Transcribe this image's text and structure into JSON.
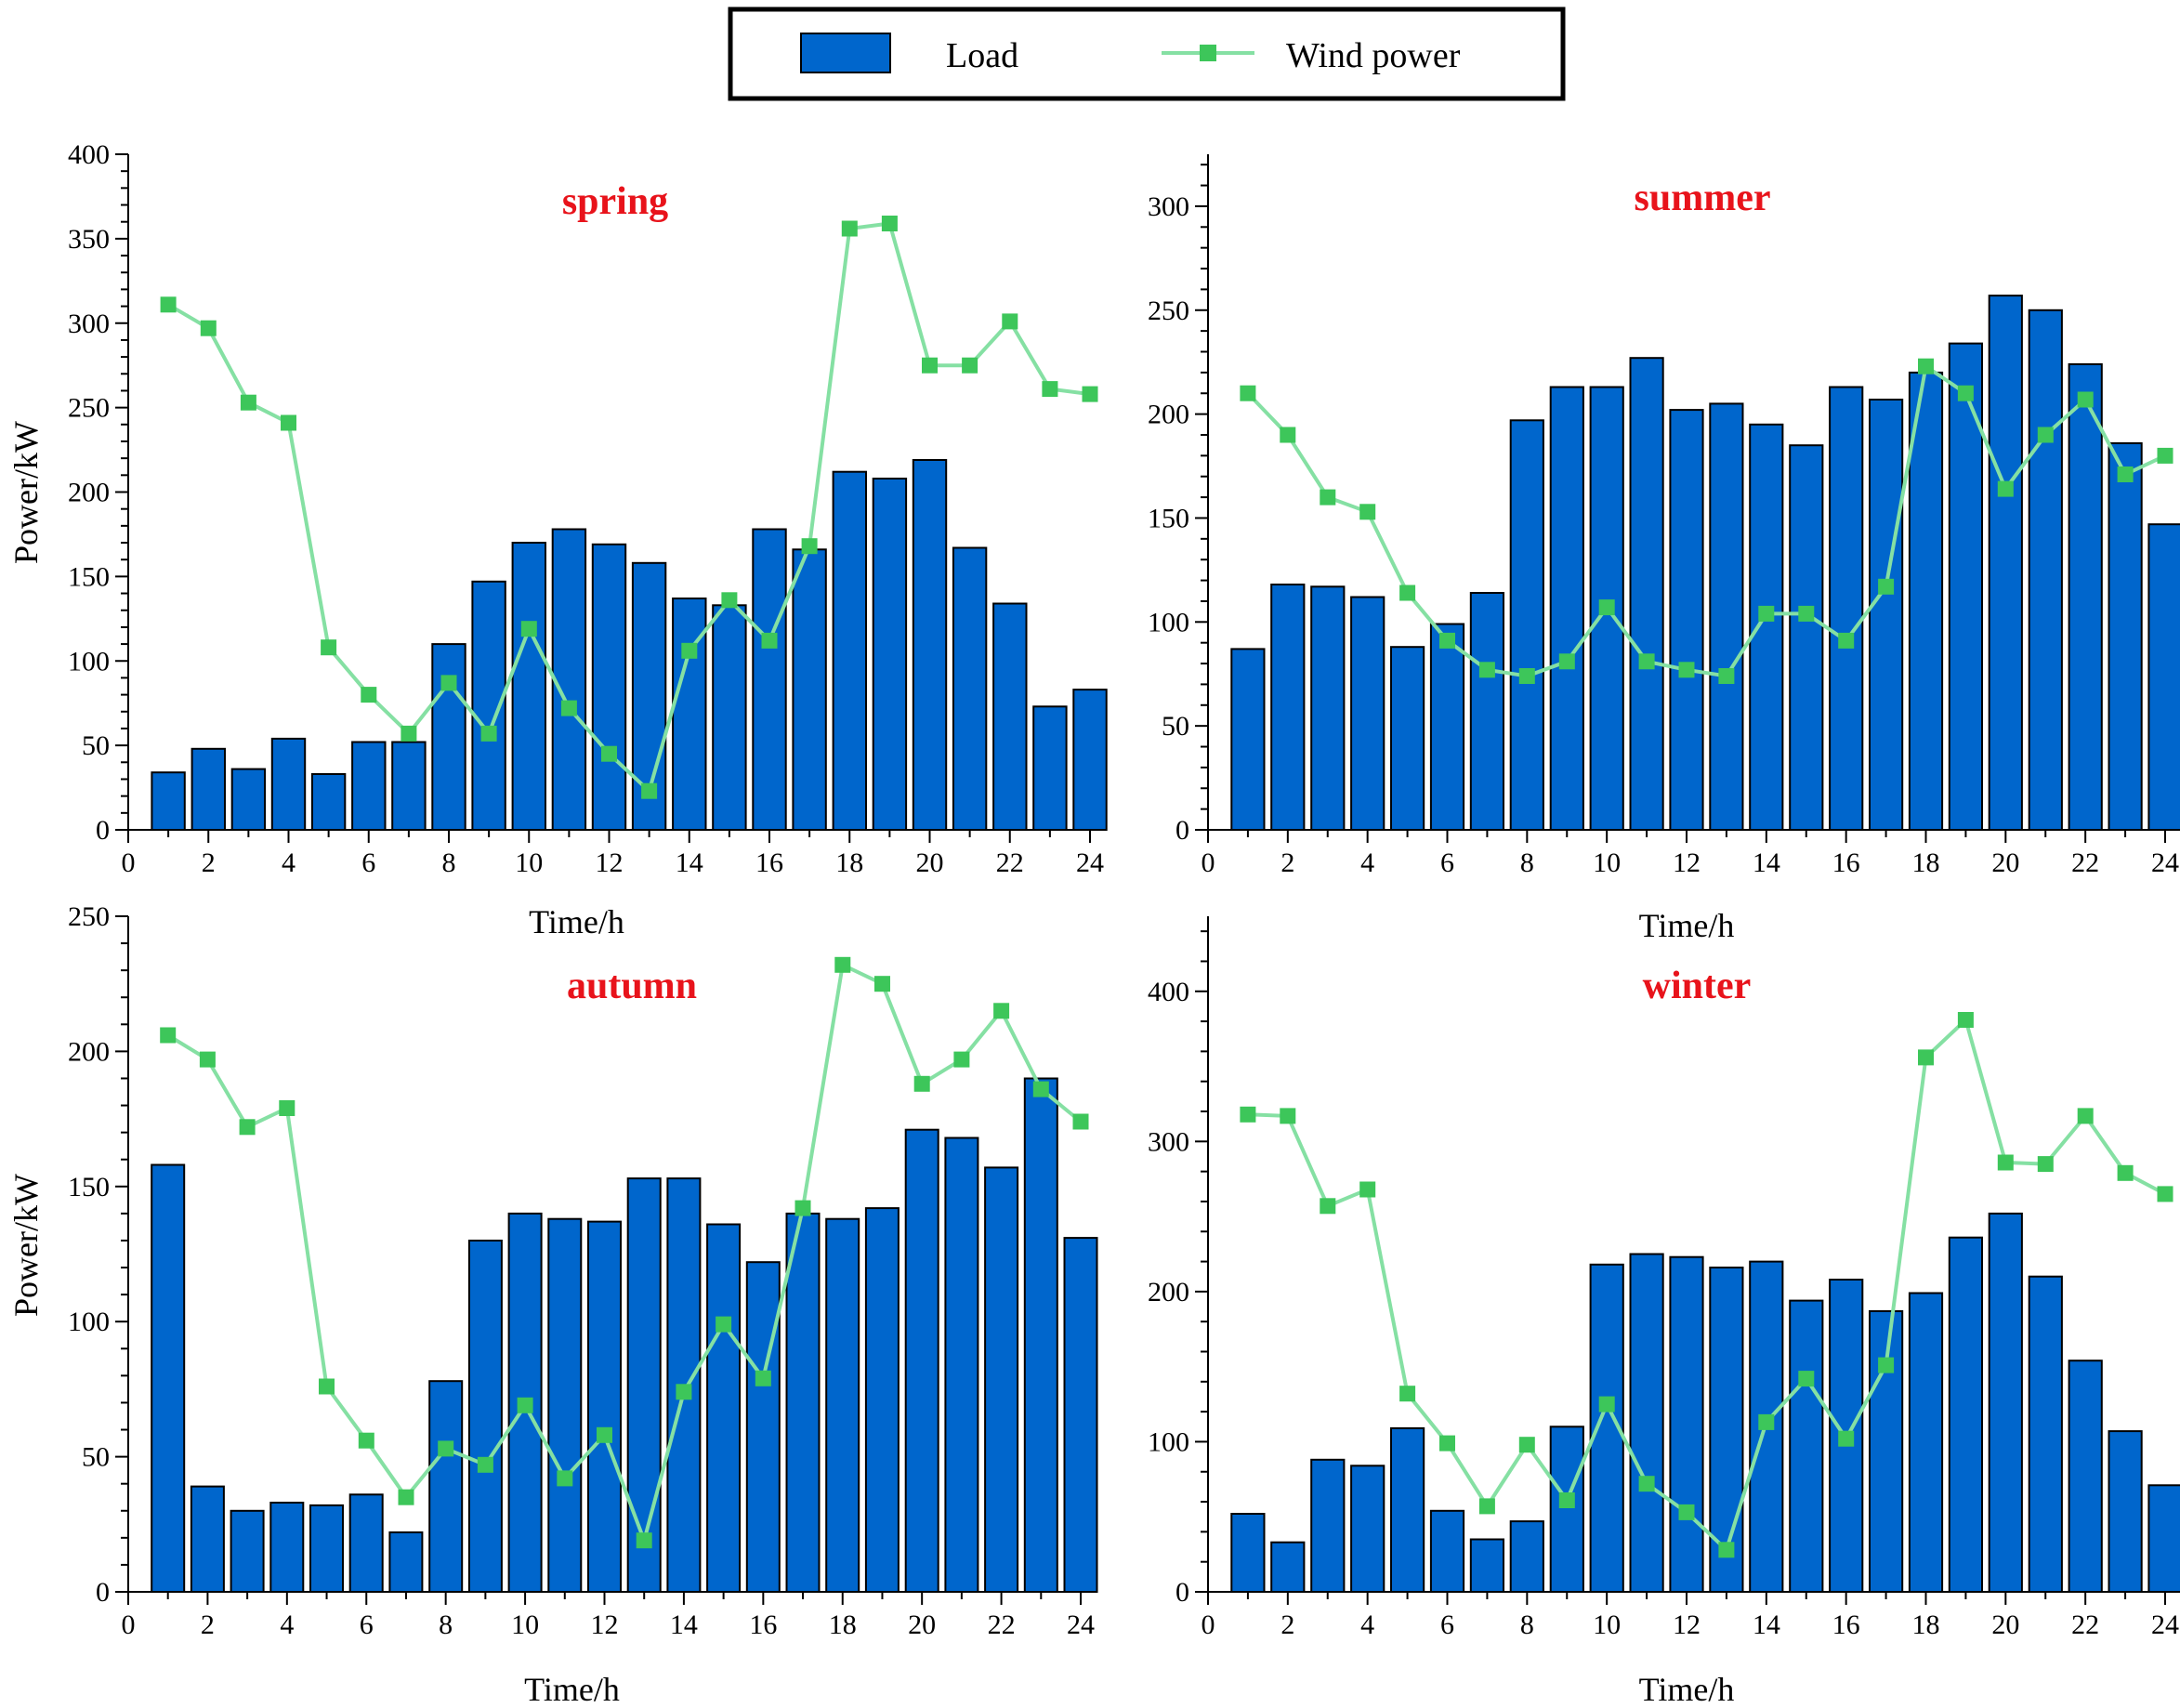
{
  "legend": {
    "load_label": "Load",
    "wind_label": "Wind power"
  },
  "colors": {
    "load_fill": "#0066cc",
    "wind_line": "#85e0a3",
    "wind_marker": "#3dc65a",
    "title": "#e8131b"
  },
  "chart_data": [
    {
      "type": "bar",
      "title": "spring",
      "xlabel": "Time/h",
      "ylabel": "Power/kW",
      "xlim": [
        0,
        24
      ],
      "ylim": [
        0,
        400
      ],
      "xticks": [
        0,
        2,
        4,
        6,
        8,
        10,
        12,
        14,
        16,
        18,
        20,
        22,
        24
      ],
      "yticks": [
        0,
        50,
        100,
        150,
        200,
        250,
        300,
        350,
        400
      ],
      "x": [
        1,
        2,
        3,
        4,
        5,
        6,
        7,
        8,
        9,
        10,
        11,
        12,
        13,
        14,
        15,
        16,
        17,
        18,
        19,
        20,
        21,
        22,
        23,
        24
      ],
      "series": [
        {
          "name": "Load",
          "type": "bar",
          "values": [
            34,
            48,
            36,
            54,
            33,
            52,
            52,
            110,
            147,
            170,
            178,
            169,
            158,
            137,
            133,
            178,
            166,
            212,
            208,
            219,
            167,
            134,
            73,
            83
          ]
        },
        {
          "name": "Wind power",
          "type": "line",
          "values": [
            311,
            297,
            253,
            241,
            108,
            80,
            57,
            87,
            57,
            119,
            72,
            45,
            23,
            106,
            136,
            112,
            168,
            356,
            359,
            275,
            275,
            301,
            261,
            258
          ]
        }
      ]
    },
    {
      "type": "bar",
      "title": "summer",
      "xlabel": "Time/h",
      "ylabel": "",
      "xlim": [
        0,
        24
      ],
      "ylim": [
        0,
        325
      ],
      "xticks": [
        0,
        2,
        4,
        6,
        8,
        10,
        12,
        14,
        16,
        18,
        20,
        22,
        24
      ],
      "yticks": [
        0,
        50,
        100,
        150,
        200,
        250,
        300
      ],
      "x": [
        1,
        2,
        3,
        4,
        5,
        6,
        7,
        8,
        9,
        10,
        11,
        12,
        13,
        14,
        15,
        16,
        17,
        18,
        19,
        20,
        21,
        22,
        23,
        24
      ],
      "series": [
        {
          "name": "Load",
          "type": "bar",
          "values": [
            87,
            118,
            117,
            112,
            88,
            99,
            114,
            197,
            213,
            213,
            227,
            202,
            205,
            195,
            185,
            213,
            207,
            220,
            234,
            257,
            250,
            224,
            186,
            147
          ]
        },
        {
          "name": "Wind power",
          "type": "line",
          "values": [
            210,
            190,
            160,
            153,
            114,
            91,
            77,
            74,
            81,
            107,
            81,
            77,
            74,
            104,
            104,
            91,
            117,
            223,
            210,
            164,
            190,
            207,
            171,
            180
          ]
        }
      ]
    },
    {
      "type": "bar",
      "title": "autumn",
      "xlabel": "Time/h",
      "ylabel": "Power/kW",
      "xlim": [
        0,
        24
      ],
      "ylim": [
        0,
        250
      ],
      "xticks": [
        0,
        2,
        4,
        6,
        8,
        10,
        12,
        14,
        16,
        18,
        20,
        22,
        24
      ],
      "yticks": [
        0,
        50,
        100,
        150,
        200,
        250
      ],
      "x": [
        1,
        2,
        3,
        4,
        5,
        6,
        7,
        8,
        9,
        10,
        11,
        12,
        13,
        14,
        15,
        16,
        17,
        18,
        19,
        20,
        21,
        22,
        23,
        24
      ],
      "series": [
        {
          "name": "Load",
          "type": "bar",
          "values": [
            158,
            39,
            30,
            33,
            32,
            36,
            22,
            78,
            130,
            140,
            138,
            137,
            153,
            153,
            136,
            122,
            140,
            138,
            142,
            171,
            168,
            157,
            190,
            131
          ]
        },
        {
          "name": "Wind power",
          "type": "line",
          "values": [
            206,
            197,
            172,
            179,
            76,
            56,
            35,
            53,
            47,
            69,
            42,
            58,
            19,
            74,
            99,
            79,
            142,
            232,
            225,
            188,
            197,
            215,
            186,
            174
          ]
        }
      ]
    },
    {
      "type": "bar",
      "title": "winter",
      "xlabel": "Time/h",
      "ylabel": "",
      "xlim": [
        0,
        24
      ],
      "ylim": [
        0,
        450
      ],
      "xticks": [
        0,
        2,
        4,
        6,
        8,
        10,
        12,
        14,
        16,
        18,
        20,
        22,
        24
      ],
      "yticks": [
        0,
        100,
        200,
        300,
        400
      ],
      "x": [
        1,
        2,
        3,
        4,
        5,
        6,
        7,
        8,
        9,
        10,
        11,
        12,
        13,
        14,
        15,
        16,
        17,
        18,
        19,
        20,
        21,
        22,
        23,
        24
      ],
      "series": [
        {
          "name": "Load",
          "type": "bar",
          "values": [
            52,
            33,
            88,
            84,
            109,
            54,
            35,
            47,
            110,
            218,
            225,
            223,
            216,
            220,
            194,
            208,
            187,
            199,
            236,
            252,
            210,
            154,
            107,
            71
          ]
        },
        {
          "name": "Wind power",
          "type": "line",
          "values": [
            318,
            317,
            257,
            268,
            132,
            99,
            57,
            98,
            61,
            125,
            72,
            53,
            28,
            113,
            142,
            102,
            151,
            356,
            381,
            286,
            285,
            317,
            279,
            265
          ]
        }
      ]
    }
  ]
}
